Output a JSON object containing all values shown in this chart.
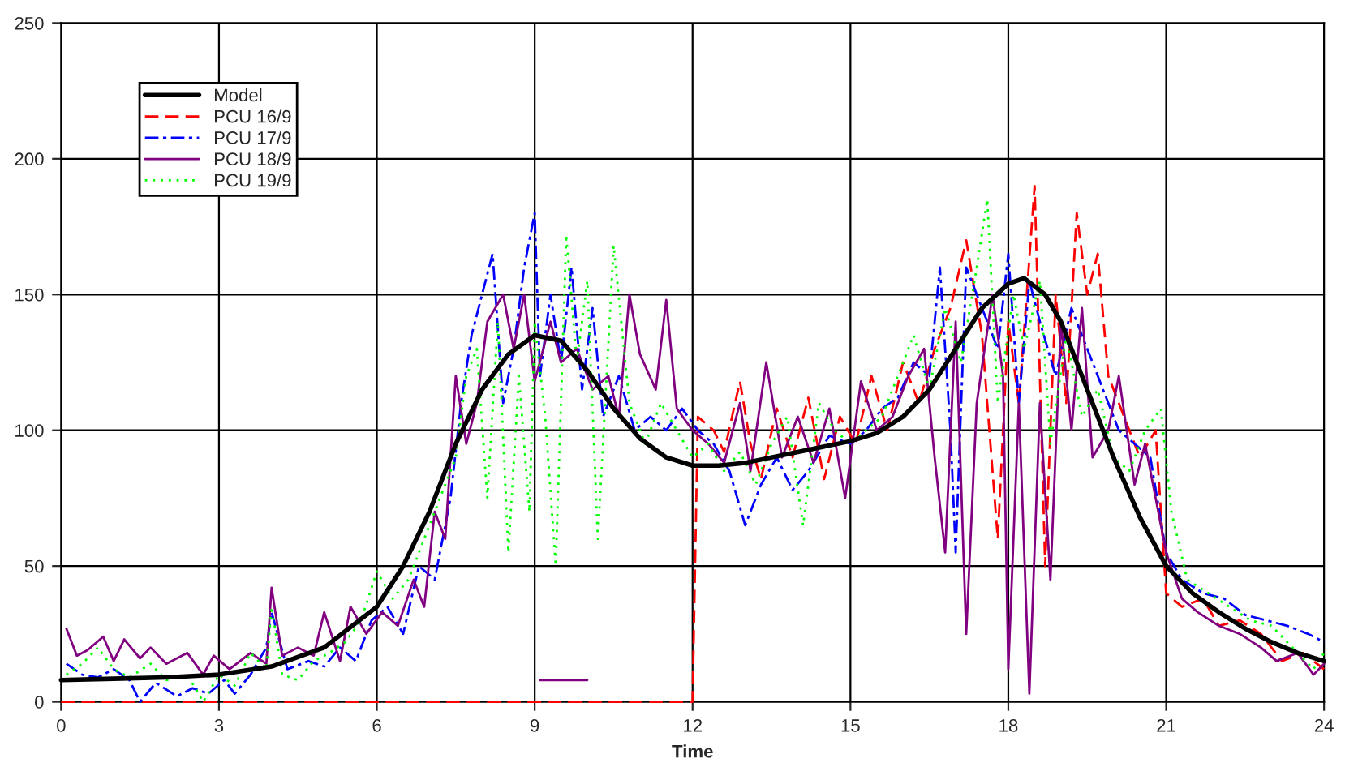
{
  "chart_data": {
    "type": "line",
    "xlabel": "Time",
    "xlim": [
      0,
      24
    ],
    "xticks": [
      0,
      3,
      6,
      9,
      12,
      15,
      18,
      21,
      24
    ],
    "ylim": [
      0,
      250
    ],
    "yticks": [
      0,
      50,
      100,
      150,
      200,
      250
    ],
    "grid": true,
    "legend": "top left",
    "marker": "none",
    "series": [
      {
        "name": "Model",
        "color": "#000000",
        "line_style": "solid",
        "x": [
          0,
          1,
          2,
          3,
          4,
          5,
          6,
          6.5,
          7,
          7.5,
          8,
          8.5,
          9,
          9.5,
          10,
          10.5,
          11,
          11.5,
          12,
          12.5,
          13,
          14,
          15,
          15.5,
          16,
          16.5,
          17,
          17.5,
          18,
          18.3,
          18.7,
          19,
          19.5,
          20,
          20.5,
          21,
          21.5,
          22,
          22.5,
          23,
          23.5,
          24
        ],
        "values": [
          8,
          8.5,
          9,
          10,
          13,
          20,
          35,
          50,
          70,
          95,
          115,
          128,
          135,
          133,
          122,
          108,
          97,
          90,
          87,
          87,
          88,
          92,
          96,
          99,
          105,
          115,
          130,
          145,
          154,
          156,
          150,
          140,
          115,
          90,
          68,
          50,
          40,
          33,
          27,
          22,
          18,
          15
        ]
      },
      {
        "name": "PCU 16/9",
        "color": "#ff0000",
        "line_style": "dashed",
        "x": [
          0,
          12.0,
          12.1,
          12.4,
          12.6,
          12.9,
          13.1,
          13.3,
          13.6,
          13.9,
          14.2,
          14.5,
          14.8,
          15.1,
          15.4,
          15.7,
          16.0,
          16.3,
          16.6,
          16.9,
          17.2,
          17.5,
          17.8,
          18.0,
          18.2,
          18.5,
          18.7,
          18.9,
          19.1,
          19.3,
          19.5,
          19.7,
          19.9,
          20.2,
          20.5,
          20.8,
          21.0,
          21.3,
          21.7,
          22.0,
          22.4,
          22.8,
          23.2,
          23.6,
          24.0
        ],
        "values": [
          0,
          0,
          105,
          100,
          92,
          118,
          95,
          82,
          108,
          90,
          112,
          82,
          105,
          95,
          120,
          100,
          125,
          110,
          130,
          145,
          170,
          135,
          60,
          140,
          110,
          190,
          50,
          150,
          110,
          180,
          150,
          165,
          120,
          105,
          90,
          100,
          40,
          35,
          38,
          28,
          30,
          25,
          15,
          18,
          12
        ]
      },
      {
        "name": "PCU 17/9",
        "color": "#0000ff",
        "line_style": "dashdot",
        "x": [
          0.1,
          0.4,
          0.7,
          1.0,
          1.3,
          1.5,
          1.8,
          2.2,
          2.5,
          2.8,
          3.1,
          3.3,
          3.6,
          3.9,
          4.0,
          4.3,
          4.7,
          5.0,
          5.3,
          5.6,
          5.9,
          6.2,
          6.5,
          6.8,
          7.1,
          7.4,
          7.6,
          7.8,
          8.0,
          8.2,
          8.4,
          8.6,
          8.8,
          9.0,
          9.1,
          9.3,
          9.5,
          9.7,
          9.9,
          10.1,
          10.3,
          10.6,
          10.9,
          11.2,
          11.5,
          11.8,
          12.1,
          12.4,
          12.7,
          13.0,
          13.3,
          13.6,
          13.9,
          14.2,
          14.6,
          15.0,
          15.3,
          15.6,
          15.9,
          16.2,
          16.5,
          16.7,
          16.9,
          17.0,
          17.2,
          17.5,
          17.8,
          18.0,
          18.2,
          18.4,
          18.6,
          18.9,
          19.2,
          19.5,
          19.8,
          20.1,
          20.4,
          20.7,
          21.0,
          21.3,
          21.7,
          22.1,
          22.5,
          22.9,
          23.3,
          23.7,
          24.0
        ],
        "values": [
          14,
          10,
          9,
          12,
          8,
          0,
          7,
          2,
          5,
          3,
          8,
          3,
          10,
          20,
          33,
          12,
          15,
          13,
          20,
          15,
          30,
          35,
          25,
          50,
          45,
          75,
          110,
          135,
          150,
          165,
          110,
          130,
          160,
          180,
          120,
          150,
          125,
          160,
          115,
          145,
          105,
          120,
          100,
          105,
          100,
          108,
          100,
          95,
          85,
          65,
          80,
          90,
          78,
          85,
          98,
          95,
          100,
          108,
          112,
          125,
          120,
          160,
          100,
          55,
          160,
          145,
          130,
          165,
          110,
          155,
          140,
          120,
          145,
          130,
          115,
          100,
          95,
          90,
          55,
          45,
          40,
          38,
          32,
          30,
          28,
          25,
          22
        ]
      },
      {
        "name": "PCU 18/9",
        "color": "#800080",
        "line_style": "solid",
        "x": [
          0.1,
          0.3,
          0.5,
          0.8,
          1.0,
          1.2,
          1.5,
          1.7,
          2.0,
          2.4,
          2.7,
          2.9,
          3.2,
          3.6,
          3.9,
          4.0,
          4.2,
          4.5,
          4.8,
          5.0,
          5.3,
          5.5,
          5.8,
          6.1,
          6.4,
          6.7,
          6.9,
          7.1,
          7.3,
          7.5,
          7.7,
          7.9,
          8.1,
          8.4,
          8.6,
          8.8,
          9.0,
          9.3,
          9.5,
          9.8,
          10.1,
          10.4,
          10.6,
          10.8,
          11.0,
          11.3,
          11.5,
          11.7,
          12.0,
          12.3,
          12.6,
          12.9,
          13.1,
          13.4,
          13.7,
          14.0,
          14.3,
          14.6,
          14.9,
          15.2,
          15.5,
          15.8,
          16.1,
          16.4,
          16.6,
          16.8,
          17.0,
          17.2,
          17.4,
          17.7,
          17.9,
          18.0,
          18.2,
          18.4,
          18.6,
          18.8,
          19.0,
          19.2,
          19.4,
          19.6,
          19.9,
          20.1,
          20.4,
          20.6,
          21.0,
          21.3,
          21.6,
          22.0,
          22.4,
          22.8,
          23.1,
          23.5,
          23.8,
          24.0
        ],
        "values": [
          27,
          17,
          19,
          24,
          15,
          23,
          16,
          20,
          14,
          18,
          10,
          17,
          12,
          18,
          14,
          42,
          17,
          20,
          17,
          33,
          15,
          35,
          25,
          33,
          28,
          45,
          35,
          70,
          60,
          120,
          95,
          110,
          140,
          150,
          130,
          150,
          118,
          140,
          125,
          130,
          115,
          120,
          105,
          150,
          128,
          115,
          148,
          108,
          100,
          95,
          88,
          110,
          85,
          125,
          90,
          105,
          88,
          108,
          75,
          118,
          100,
          105,
          120,
          130,
          90,
          55,
          140,
          25,
          110,
          150,
          120,
          12,
          110,
          3,
          110,
          45,
          140,
          100,
          145,
          90,
          100,
          120,
          80,
          95,
          55,
          38,
          33,
          28,
          25,
          20,
          15,
          18,
          10,
          14
        ]
      },
      {
        "name": "PCU 19/9",
        "color": "#00ff00",
        "line_style": "dotted",
        "x": [
          0.1,
          0.4,
          0.7,
          1.0,
          1.3,
          1.7,
          2.0,
          2.4,
          2.7,
          3.0,
          3.3,
          3.6,
          3.9,
          4.0,
          4.2,
          4.5,
          4.8,
          5.1,
          5.4,
          5.7,
          6.0,
          6.3,
          6.6,
          6.9,
          7.2,
          7.5,
          7.7,
          7.9,
          8.1,
          8.3,
          8.5,
          8.7,
          8.9,
          9.0,
          9.2,
          9.4,
          9.6,
          9.8,
          10.0,
          10.2,
          10.5,
          10.8,
          11.1,
          11.4,
          11.7,
          12.0,
          12.3,
          12.6,
          12.9,
          13.2,
          13.5,
          13.8,
          14.1,
          14.4,
          14.7,
          15.0,
          15.3,
          15.6,
          15.9,
          16.2,
          16.5,
          16.8,
          17.1,
          17.4,
          17.6,
          17.8,
          18.1,
          18.3,
          18.6,
          18.8,
          19.1,
          19.4,
          19.7,
          20.0,
          20.3,
          20.6,
          20.9,
          21.1,
          21.4,
          21.8,
          22.2,
          22.6,
          23.0,
          23.4,
          23.8,
          24.0
        ],
        "values": [
          10,
          14,
          20,
          12,
          9,
          14,
          8,
          10,
          0,
          10,
          6,
          18,
          12,
          35,
          10,
          8,
          15,
          18,
          22,
          30,
          48,
          38,
          45,
          60,
          75,
          90,
          120,
          130,
          75,
          140,
          55,
          120,
          70,
          140,
          105,
          50,
          172,
          125,
          155,
          60,
          168,
          110,
          95,
          110,
          100,
          90,
          95,
          85,
          92,
          80,
          95,
          105,
          65,
          110,
          100,
          95,
          100,
          105,
          120,
          135,
          115,
          145,
          125,
          160,
          185,
          110,
          150,
          130,
          155,
          95,
          135,
          105,
          115,
          90,
          85,
          100,
          108,
          70,
          45,
          40,
          35,
          30,
          28,
          20,
          12,
          18
        ]
      },
      {
        "color": "#800080",
        "line_style": "solid",
        "x": [
          9.1,
          10.0
        ],
        "values": [
          8,
          8
        ]
      }
    ]
  }
}
